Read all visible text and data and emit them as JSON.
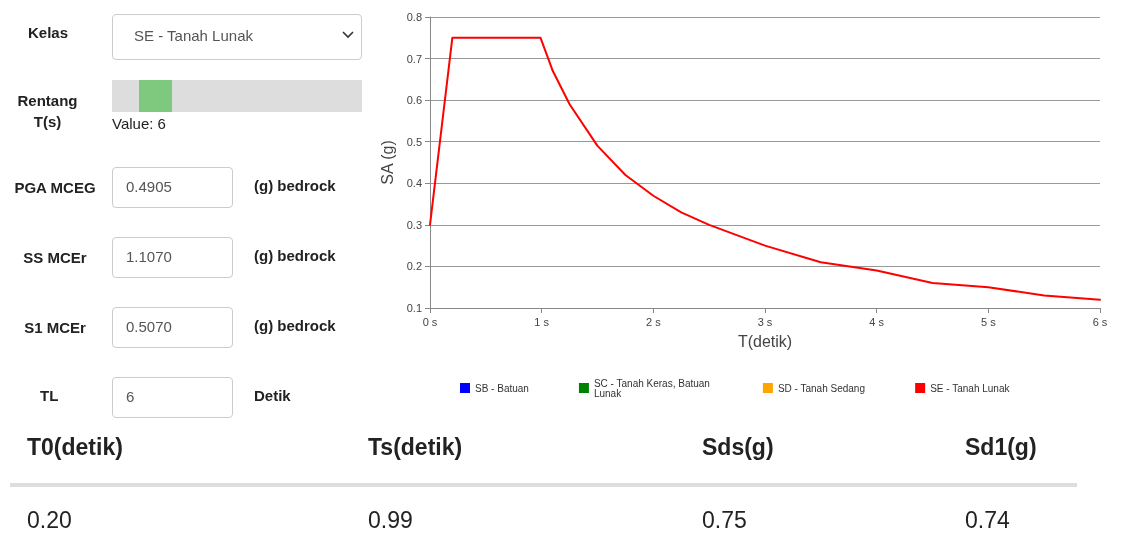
{
  "chart_data": [
    {
      "type": "line",
      "xlabel": "T(detik)",
      "ylabel": "SA (g)",
      "xlim": [
        0,
        6
      ],
      "xticks": [
        {
          "value": 0,
          "label": "0 s"
        },
        {
          "value": 1,
          "label": "1 s"
        },
        {
          "value": 2,
          "label": "2 s"
        },
        {
          "value": 3,
          "label": "3 s"
        },
        {
          "value": 4,
          "label": "4 s"
        },
        {
          "value": 5,
          "label": "5 s"
        },
        {
          "value": 6,
          "label": "6 s"
        }
      ],
      "ylim": [
        0.1,
        0.8
      ],
      "yticks": [
        0.1,
        0.2,
        0.3,
        0.4,
        0.5,
        0.6,
        0.7,
        0.8
      ],
      "grid": "y",
      "legend": "bottom",
      "marker": "none",
      "line_style": "solid",
      "series": [
        {
          "name": "SB - Batuan",
          "color": "#0000ff"
        },
        {
          "name": "SC - Tanah Keras, Batuan Lunak",
          "color": "#008000"
        },
        {
          "name": "SD - Tanah Sedang",
          "color": "#ffa500"
        },
        {
          "name": "SE - Tanah Lunak",
          "color": "#ff0000",
          "x": [
            0,
            0.2,
            0.99,
            1.1,
            1.25,
            1.5,
            1.75,
            2,
            2.25,
            2.5,
            3,
            3.5,
            4,
            4.5,
            5,
            5.5,
            6
          ],
          "values": [
            0.3,
            0.75,
            0.75,
            0.67,
            0.59,
            0.49,
            0.42,
            0.37,
            0.33,
            0.3,
            0.25,
            0.21,
            0.19,
            0.16,
            0.15,
            0.13,
            0.12
          ]
        }
      ]
    },
    {
      "type": "other",
      "annotations": [
        "Kelas",
        "SE - Tanah Lunak",
        "Rentang T(s)",
        "Value: 6",
        "PGA MCEG",
        "0.4905",
        "(g) bedrock",
        "SS MCEr",
        "1.1070",
        "(g) bedrock",
        "S1 MCEr",
        "0.5070",
        "(g) bedrock",
        "TL",
        "6",
        "Detik",
        "T0(detik)",
        "Ts(detik)",
        "Sds(g)",
        "Sd1(g)",
        "0.20",
        "0.99",
        "0.75",
        "0.74"
      ]
    }
  ]
}
